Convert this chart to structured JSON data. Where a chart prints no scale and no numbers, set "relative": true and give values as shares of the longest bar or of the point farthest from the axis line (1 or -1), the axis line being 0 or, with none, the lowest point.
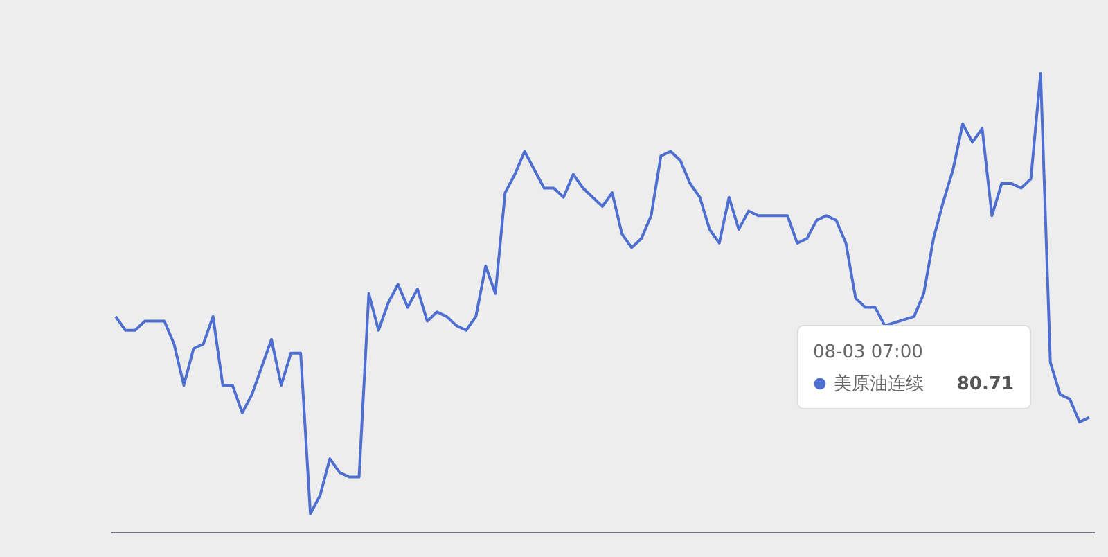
{
  "chart_data": {
    "type": "line",
    "relative": true,
    "categories": [
      null,
      null,
      null,
      null,
      null,
      null,
      null,
      null,
      null,
      null,
      null,
      null,
      null,
      null,
      null,
      null,
      null,
      null,
      null,
      null,
      null,
      null,
      null,
      null,
      null,
      null,
      null,
      null,
      null,
      null,
      null,
      null,
      null,
      null,
      null,
      null,
      null,
      null,
      null,
      null,
      null,
      null,
      null,
      null,
      null,
      null,
      null,
      null,
      null,
      null,
      null,
      null,
      null,
      null,
      null,
      null,
      null,
      null,
      null,
      null,
      null,
      null,
      null,
      null,
      null,
      null,
      null,
      null,
      null,
      null,
      null,
      null,
      null,
      null,
      null,
      null,
      null,
      null,
      null,
      null,
      null,
      null,
      null,
      null,
      null,
      null,
      null,
      null,
      null,
      null,
      null,
      null,
      null,
      null,
      null,
      null,
      null,
      null,
      null,
      null,
      null
    ],
    "series": [
      {
        "name": "美原油连续",
        "color": "#4e6fcf",
        "values": [
          0.47,
          0.44,
          0.44,
          0.46,
          0.46,
          0.46,
          0.41,
          0.32,
          0.4,
          0.41,
          0.47,
          0.32,
          0.32,
          0.26,
          0.3,
          0.36,
          0.42,
          0.32,
          0.39,
          0.39,
          0.04,
          0.08,
          0.16,
          0.13,
          0.12,
          0.12,
          0.52,
          0.44,
          0.5,
          0.54,
          0.49,
          0.53,
          0.46,
          0.48,
          0.47,
          0.45,
          0.44,
          0.47,
          0.58,
          0.52,
          0.74,
          0.78,
          0.83,
          0.79,
          0.75,
          0.75,
          0.73,
          0.78,
          0.75,
          0.73,
          0.71,
          0.74,
          0.65,
          0.62,
          0.64,
          0.69,
          0.82,
          0.83,
          0.81,
          0.76,
          0.73,
          0.66,
          0.63,
          0.73,
          0.66,
          0.7,
          0.69,
          0.69,
          0.69,
          0.69,
          0.63,
          0.64,
          0.68,
          0.69,
          0.68,
          0.63,
          0.51,
          0.49,
          0.49,
          0.45,
          null,
          null,
          0.47,
          0.52,
          0.64,
          0.72,
          0.79,
          0.89,
          0.85,
          0.88,
          0.69,
          0.76,
          0.76,
          0.75,
          0.77,
          1,
          0.37,
          0.3,
          0.29,
          0.24,
          0.25
        ]
      }
    ],
    "annotations": [
      "08-03 07:00",
      "80.71"
    ],
    "legend": "bottom right",
    "marker": "none",
    "line_style": "solid"
  }
}
